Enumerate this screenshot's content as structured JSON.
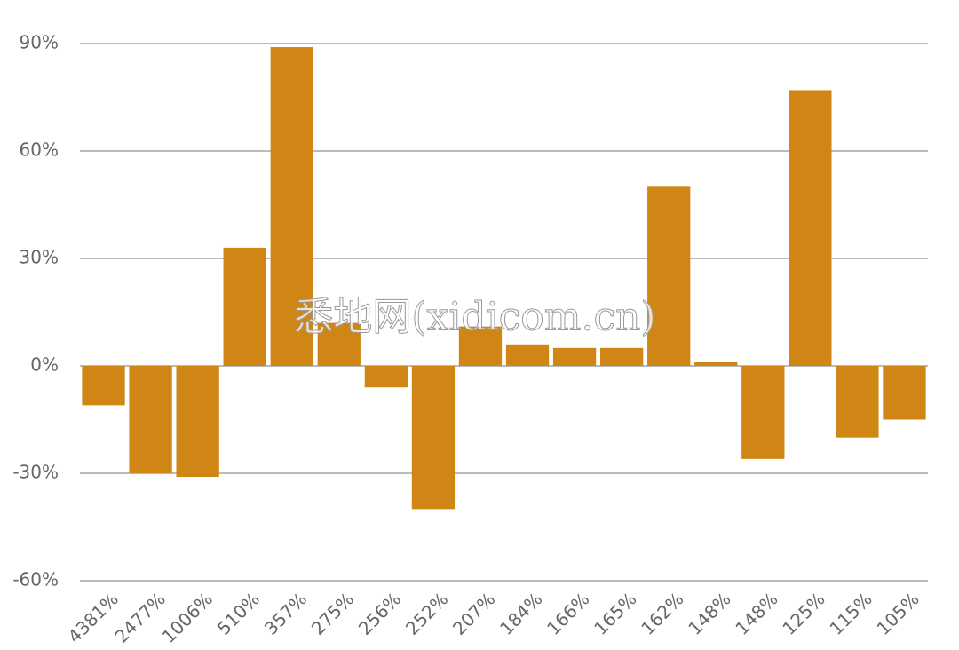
{
  "chart_data": {
    "type": "bar",
    "watermark": "悉地网(xidicom.cn)",
    "categories": [
      "4381%",
      "2477%",
      "1006%",
      "510%",
      "357%",
      "275%",
      "256%",
      "252%",
      "207%",
      "184%",
      "166%",
      "165%",
      "162%",
      "148%",
      "148%",
      "125%",
      "115%",
      "105%"
    ],
    "values": [
      -11,
      -30,
      -31,
      33,
      89,
      12,
      -6,
      -40,
      11,
      6,
      5,
      5,
      50,
      1,
      -26,
      77,
      -20,
      -15
    ],
    "color": "#d08615",
    "ylim": [
      -60,
      90
    ],
    "yticks": [
      {
        "value": -60,
        "label": "-60%"
      },
      {
        "value": -30,
        "label": "-30%"
      },
      {
        "value": 0,
        "label": "0%"
      },
      {
        "value": 30,
        "label": "30%"
      },
      {
        "value": 60,
        "label": "60%"
      },
      {
        "value": 90,
        "label": "90%"
      }
    ],
    "grid": true
  }
}
